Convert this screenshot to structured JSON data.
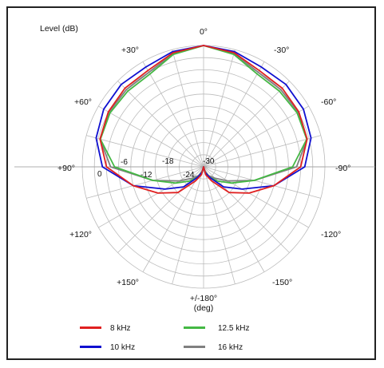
{
  "chart_data": {
    "type": "polar-line",
    "title": "Level  (dB)",
    "xlabel": "(deg)",
    "rlim": [
      -30,
      0
    ],
    "radial_ticks": [
      {
        "value": 0,
        "label": "0"
      },
      {
        "value": -6,
        "label": "-6"
      },
      {
        "value": -12,
        "label": "-12"
      },
      {
        "value": -18,
        "label": "-18"
      },
      {
        "value": -24,
        "label": "-24"
      },
      {
        "value": -30,
        "label": "-30"
      }
    ],
    "angle_labels": [
      {
        "angle": 0,
        "label": "0°"
      },
      {
        "angle": 30,
        "label": "-30°"
      },
      {
        "angle": 60,
        "label": "-60°"
      },
      {
        "angle": 90,
        "label": "-90°"
      },
      {
        "angle": 120,
        "label": "-120°"
      },
      {
        "angle": 150,
        "label": "-150°"
      },
      {
        "angle": 180,
        "label": "+/-180°"
      },
      {
        "angle": 210,
        "label": "+150°"
      },
      {
        "angle": 240,
        "label": "+120°"
      },
      {
        "angle": 270,
        "label": "+90°"
      },
      {
        "angle": 300,
        "label": "+60°"
      },
      {
        "angle": 330,
        "label": "+30°"
      }
    ],
    "grid": true,
    "legend_position": "bottom",
    "angles": [
      0,
      15,
      30,
      45,
      60,
      75,
      90,
      105,
      120,
      135,
      150,
      165,
      180
    ],
    "series": [
      {
        "name": "8 kHz",
        "color": "#e02020",
        "values": [
          0,
          -0.8,
          -2.5,
          -2.5,
          -2.8,
          -3.5,
          -6,
          -12,
          -17,
          -21,
          -26,
          -28,
          -30
        ]
      },
      {
        "name": "10 kHz",
        "color": "#1010d0",
        "values": [
          0,
          -0.5,
          -1.5,
          -1.2,
          -1.5,
          -2.5,
          -5,
          -12,
          -19,
          -23,
          -27,
          -28.5,
          -30
        ]
      },
      {
        "name": "12.5 kHz",
        "color": "#44b844",
        "values": [
          0,
          -1.2,
          -3.5,
          -3.5,
          -3.3,
          -3.6,
          -8,
          -17,
          -22,
          -25,
          -27,
          -28.5,
          -30
        ]
      },
      {
        "name": "16 kHz",
        "color": "#808080",
        "values": [
          0,
          -1.0,
          -3.0,
          -3.0,
          -3.0,
          -3.5,
          -7,
          -17,
          -23,
          -26,
          -27.5,
          -29,
          -30
        ]
      }
    ]
  }
}
